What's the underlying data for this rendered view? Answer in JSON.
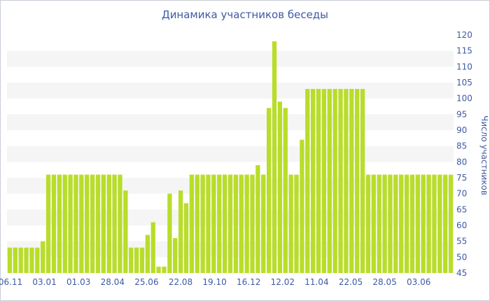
{
  "chart_data": {
    "type": "bar",
    "title": "Динамика участников беседы",
    "ylabel": "Число участников",
    "xlabel": "",
    "ylim": [
      45,
      120
    ],
    "y_ticks": [
      45,
      50,
      55,
      60,
      65,
      70,
      75,
      80,
      85,
      90,
      95,
      100,
      105,
      110,
      115,
      120
    ],
    "x_tick_labels": [
      "06.11",
      "03.01",
      "01.03",
      "28.04",
      "25.06",
      "22.08",
      "19.10",
      "16.12",
      "12.02",
      "11.04",
      "22.05",
      "28.05",
      "03.06"
    ],
    "grid": "alternating horizontal bands",
    "colors": {
      "bar": "#b8dd2a",
      "band": "#f5f5f5",
      "text": "#3f5aa2"
    },
    "values": [
      53,
      53,
      53,
      53,
      53,
      53,
      55,
      76,
      76,
      76,
      76,
      76,
      76,
      76,
      76,
      76,
      76,
      76,
      76,
      76,
      76,
      71,
      53,
      53,
      53,
      57,
      61,
      47,
      47,
      70,
      56,
      71,
      67,
      76,
      76,
      76,
      76,
      76,
      76,
      76,
      76,
      76,
      76,
      76,
      76,
      79,
      76,
      97,
      118,
      99,
      97,
      76,
      76,
      87,
      103,
      103,
      103,
      103,
      103,
      103,
      103,
      103,
      103,
      103,
      103,
      76,
      76,
      76,
      76,
      76,
      76,
      76,
      76,
      76,
      76,
      76,
      76,
      76,
      76,
      76,
      76
    ]
  }
}
